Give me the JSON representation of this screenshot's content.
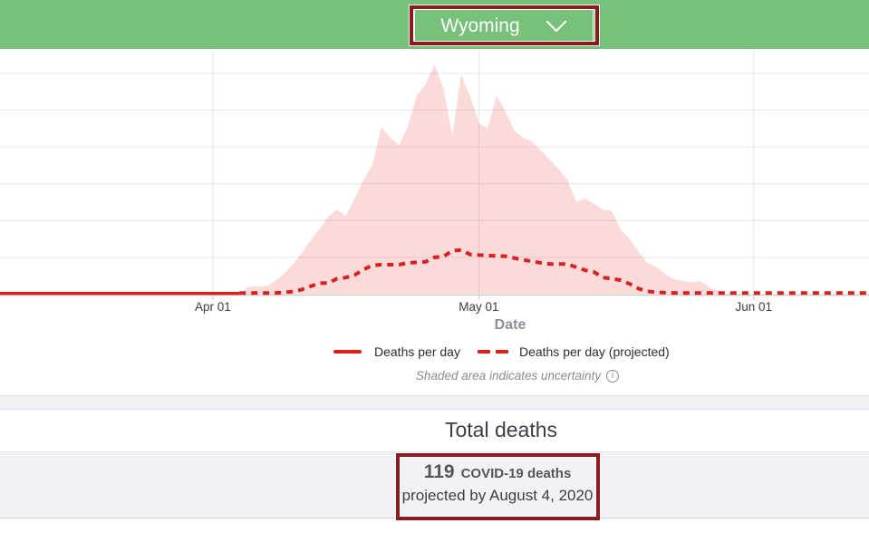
{
  "header": {
    "dropdown": {
      "label": "Wyoming"
    }
  },
  "ui_colors": {
    "header_green": "#78c17a",
    "annotation_red": "#8a1c1f",
    "line_red": "#d8211d",
    "area_pink": "rgba(233,49,49,0.18)",
    "gridline": "#e6e6e8",
    "axis_line": "#c9c9cc"
  },
  "chart_data": {
    "type": "area",
    "title": "",
    "x_axis": {
      "title": "Date",
      "ticks": [
        "Apr 01",
        "May 01",
        "Jun 01"
      ],
      "tick_dates": [
        "2020-04-01",
        "2020-05-01",
        "2020-06-01"
      ],
      "range": [
        "2020-03-08",
        "2020-06-14"
      ]
    },
    "y_axis": {
      "title": "",
      "tick_labels_visible": false,
      "gridlines": 7,
      "units": "deaths per day (axis unlabeled; 1 unit = 1 gridline spacing)",
      "range": [
        0,
        6.65
      ]
    },
    "legend": {
      "position": "bottom",
      "items": [
        {
          "label": "Deaths per day",
          "style": "solid",
          "color": "#d8211d"
        },
        {
          "label": "Deaths per day (projected)",
          "style": "dashed",
          "color": "#d8211d"
        }
      ]
    },
    "annotations": [
      "Shaded area indicates uncertainty"
    ],
    "series": [
      {
        "name": "Deaths per day",
        "style": "solid",
        "color": "#d8211d",
        "points": [
          [
            "2020-03-08",
            0.02
          ],
          [
            "2020-04-04",
            0.02
          ]
        ]
      },
      {
        "name": "Deaths per day (projected)",
        "style": "dashed",
        "color": "#d8211d",
        "points": [
          [
            "2020-04-04",
            0.03
          ],
          [
            "2020-04-08",
            0.03
          ],
          [
            "2020-04-10",
            0.07
          ],
          [
            "2020-04-11",
            0.12
          ],
          [
            "2020-04-13",
            0.3
          ],
          [
            "2020-04-14",
            0.3
          ],
          [
            "2020-04-15",
            0.42
          ],
          [
            "2020-04-16",
            0.45
          ],
          [
            "2020-04-17",
            0.52
          ],
          [
            "2020-04-18",
            0.67
          ],
          [
            "2020-04-19",
            0.78
          ],
          [
            "2020-04-20",
            0.8
          ],
          [
            "2020-04-22",
            0.8
          ],
          [
            "2020-04-23",
            0.85
          ],
          [
            "2020-04-25",
            0.88
          ],
          [
            "2020-04-26",
            1.0
          ],
          [
            "2020-04-27",
            1.02
          ],
          [
            "2020-04-28",
            1.18
          ],
          [
            "2020-04-29",
            1.2
          ],
          [
            "2020-04-30",
            1.08
          ],
          [
            "2020-05-02",
            1.05
          ],
          [
            "2020-05-04",
            1.03
          ],
          [
            "2020-05-05",
            0.98
          ],
          [
            "2020-05-06",
            0.93
          ],
          [
            "2020-05-08",
            0.85
          ],
          [
            "2020-05-09",
            0.82
          ],
          [
            "2020-05-11",
            0.82
          ],
          [
            "2020-05-12",
            0.73
          ],
          [
            "2020-05-13",
            0.65
          ],
          [
            "2020-05-14",
            0.6
          ],
          [
            "2020-05-15",
            0.45
          ],
          [
            "2020-05-16",
            0.42
          ],
          [
            "2020-05-17",
            0.38
          ],
          [
            "2020-05-18",
            0.28
          ],
          [
            "2020-05-19",
            0.15
          ],
          [
            "2020-05-20",
            0.08
          ],
          [
            "2020-05-21",
            0.05
          ],
          [
            "2020-05-23",
            0.03
          ],
          [
            "2020-06-14",
            0.03
          ]
        ]
      },
      {
        "name": "Uncertainty (upper bound)",
        "style": "area",
        "color": "rgba(233,49,49,0.18)",
        "points": [
          [
            "2020-04-04",
            0
          ],
          [
            "2020-04-05",
            0.2
          ],
          [
            "2020-04-07",
            0.22
          ],
          [
            "2020-04-08",
            0.35
          ],
          [
            "2020-04-09",
            0.55
          ],
          [
            "2020-04-10",
            0.8
          ],
          [
            "2020-04-11",
            1.1
          ],
          [
            "2020-04-12",
            1.45
          ],
          [
            "2020-04-13",
            1.75
          ],
          [
            "2020-04-14",
            2.1
          ],
          [
            "2020-04-15",
            2.3
          ],
          [
            "2020-04-16",
            2.12
          ],
          [
            "2020-04-17",
            2.6
          ],
          [
            "2020-04-18",
            3.1
          ],
          [
            "2020-04-19",
            3.5
          ],
          [
            "2020-04-20",
            4.55
          ],
          [
            "2020-04-21",
            4.25
          ],
          [
            "2020-04-22",
            4.05
          ],
          [
            "2020-04-23",
            4.55
          ],
          [
            "2020-04-24",
            5.4
          ],
          [
            "2020-04-25",
            5.7
          ],
          [
            "2020-04-26",
            6.25
          ],
          [
            "2020-04-27",
            5.6
          ],
          [
            "2020-04-28",
            4.3
          ],
          [
            "2020-04-29",
            5.95
          ],
          [
            "2020-04-30",
            5.4
          ],
          [
            "2020-05-01",
            4.65
          ],
          [
            "2020-05-02",
            4.5
          ],
          [
            "2020-05-03",
            5.4
          ],
          [
            "2020-05-04",
            4.95
          ],
          [
            "2020-05-05",
            4.45
          ],
          [
            "2020-05-06",
            4.25
          ],
          [
            "2020-05-07",
            4.15
          ],
          [
            "2020-05-08",
            3.9
          ],
          [
            "2020-05-09",
            3.65
          ],
          [
            "2020-05-10",
            3.4
          ],
          [
            "2020-05-11",
            3.1
          ],
          [
            "2020-05-12",
            2.5
          ],
          [
            "2020-05-13",
            2.6
          ],
          [
            "2020-05-15",
            2.3
          ],
          [
            "2020-05-16",
            2.25
          ],
          [
            "2020-05-17",
            1.75
          ],
          [
            "2020-05-18",
            1.5
          ],
          [
            "2020-05-19",
            1.15
          ],
          [
            "2020-05-20",
            0.85
          ],
          [
            "2020-05-21",
            0.75
          ],
          [
            "2020-05-22",
            0.55
          ],
          [
            "2020-05-23",
            0.4
          ],
          [
            "2020-05-25",
            0.32
          ],
          [
            "2020-05-26",
            0.35
          ],
          [
            "2020-05-27",
            0.18
          ],
          [
            "2020-05-28",
            0.1
          ],
          [
            "2020-05-29",
            0.02
          ],
          [
            "2020-05-30",
            0
          ]
        ]
      }
    ]
  },
  "icons": {
    "info": "i"
  },
  "totals": {
    "heading": "Total deaths",
    "count": "119",
    "count_label": "COVID-19 deaths",
    "projected_text": "projected by August 4, 2020"
  }
}
